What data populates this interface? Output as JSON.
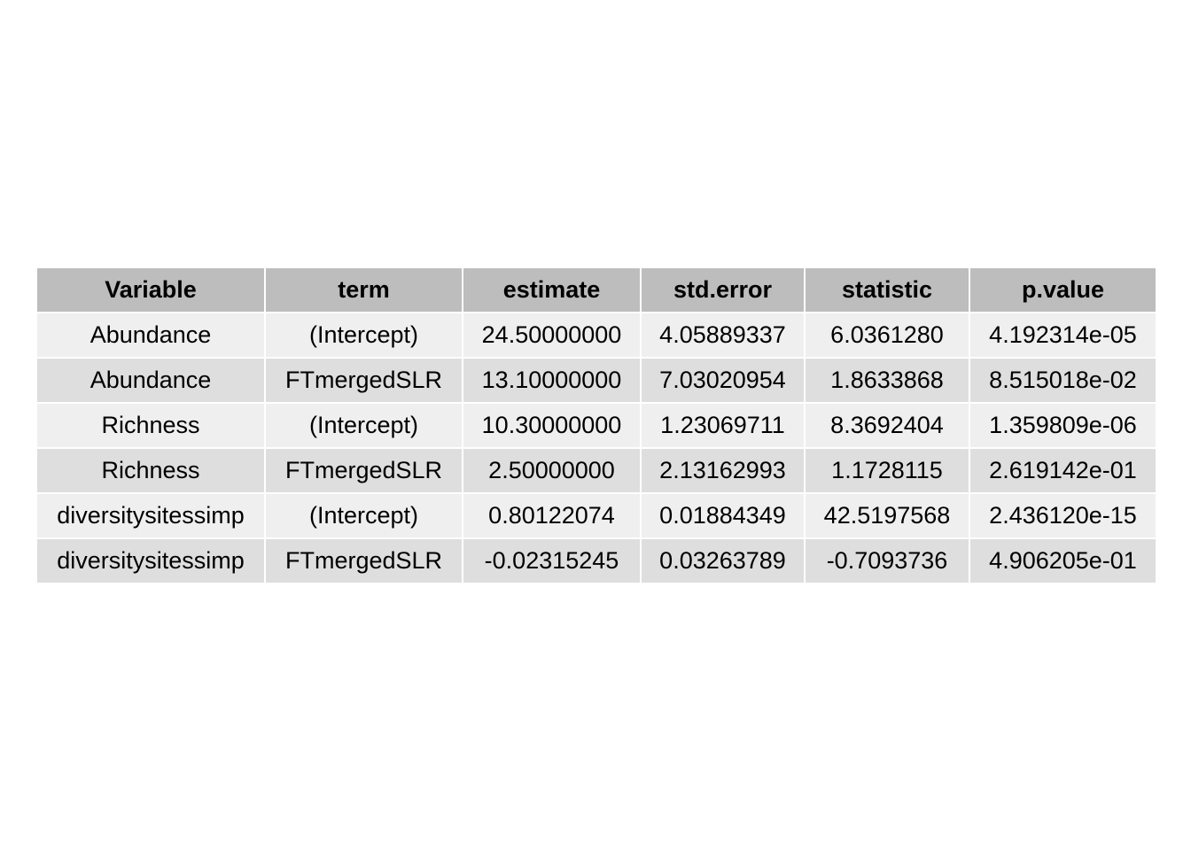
{
  "chart_data": {
    "type": "table",
    "columns": [
      "Variable",
      "term",
      "estimate",
      "std.error",
      "statistic",
      "p.value"
    ],
    "rows": [
      [
        "Abundance",
        "(Intercept)",
        "24.50000000",
        "4.05889337",
        "6.0361280",
        "4.192314e-05"
      ],
      [
        "Abundance",
        "FTmergedSLR",
        "13.10000000",
        "7.03020954",
        "1.8633868",
        "8.515018e-02"
      ],
      [
        "Richness",
        "(Intercept)",
        "10.30000000",
        "1.23069711",
        "8.3692404",
        "1.359809e-06"
      ],
      [
        "Richness",
        "FTmergedSLR",
        "2.50000000",
        "2.13162993",
        "1.1728115",
        "2.619142e-01"
      ],
      [
        "diversitysitessimp",
        "(Intercept)",
        "0.80122074",
        "0.01884349",
        "42.5197568",
        "2.436120e-15"
      ],
      [
        "diversitysitessimp",
        "FTmergedSLR",
        "-0.02315245",
        "0.03263789",
        "-0.7093736",
        "4.906205e-01"
      ]
    ]
  },
  "colors": {
    "header_bg": "#bdbdbd",
    "row_odd_bg": "#efefef",
    "row_even_bg": "#dedede",
    "border": "#ffffff",
    "text": "#000000"
  }
}
